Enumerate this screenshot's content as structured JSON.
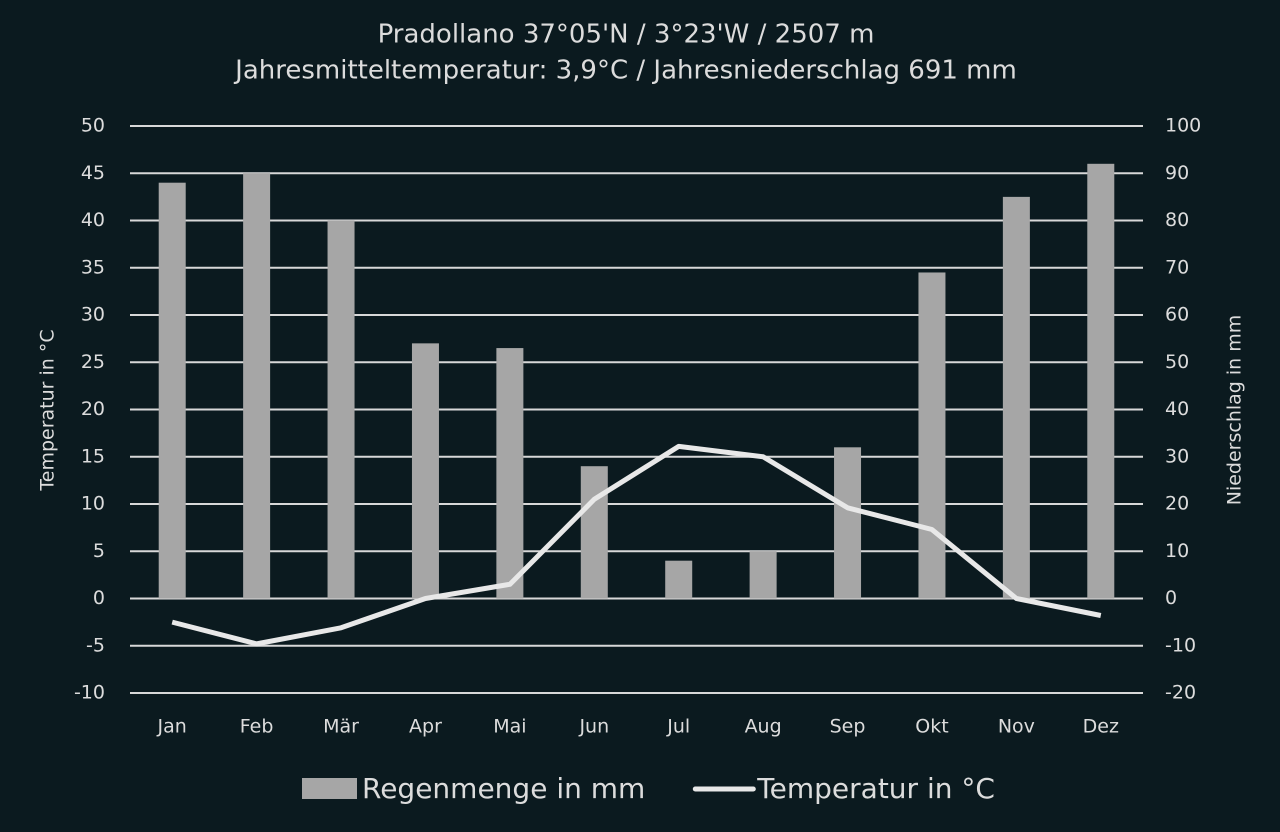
{
  "chart_data": {
    "type": "bar",
    "title": "Pradollano 37°05'N / 3°23'W / 2507 m",
    "subtitle": "Jahresmitteltemperatur: 3,9°C / Jahresniederschlag 691 mm",
    "y_label": "Temperatur in °C",
    "y2_label": "Niederschlag in mm",
    "categories": [
      "Jan",
      "Feb",
      "Mär",
      "Apr",
      "Mai",
      "Jun",
      "Jul",
      "Aug",
      "Sep",
      "Okt",
      "Nov",
      "Dez"
    ],
    "series": [
      {
        "name": "Regenmenge in mm",
        "type": "bar",
        "axis": "y2",
        "color": "#a6a6a6",
        "values": [
          88,
          90,
          80,
          54,
          53,
          28,
          8,
          10,
          32,
          69,
          85,
          92
        ]
      },
      {
        "name": "Temperatur in °C",
        "type": "line",
        "axis": "y",
        "color": "#e8e8e8",
        "values": [
          -2.5,
          -4.8,
          -3.1,
          0,
          1.5,
          10.5,
          16.1,
          15,
          9.6,
          7.3,
          0,
          -1.8
        ]
      }
    ],
    "ylim": [
      -10,
      50
    ],
    "yticks": [
      -10,
      -5,
      0,
      5,
      10,
      15,
      20,
      25,
      30,
      35,
      40,
      45,
      50
    ],
    "y2lim": [
      -20,
      100
    ],
    "y2ticks": [
      -20,
      -10,
      0,
      10,
      20,
      30,
      40,
      50,
      60,
      70,
      80,
      90,
      100
    ],
    "grid": true,
    "legend": "bottom"
  }
}
